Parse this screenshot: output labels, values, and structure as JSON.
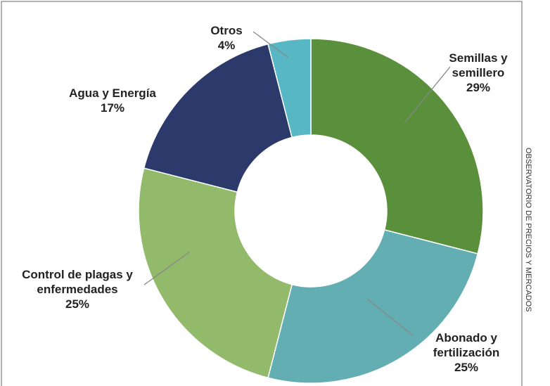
{
  "chart_data": {
    "type": "donut",
    "categories": [
      "Semillas y semillero",
      "Abonado y fertilización",
      "Control de plagas y enfermedades",
      "Agua y Energía",
      "Otros"
    ],
    "values": [
      29,
      25,
      25,
      17,
      4
    ],
    "value_labels": [
      "29%",
      "25%",
      "25%",
      "17%",
      "4%"
    ],
    "colors": [
      "#5a8f3c",
      "#62aeb2",
      "#93b96b",
      "#2b3a6b",
      "#58b7c4"
    ],
    "source": "OBSERVATORIO DE PRECIOS Y MERCADOS"
  }
}
